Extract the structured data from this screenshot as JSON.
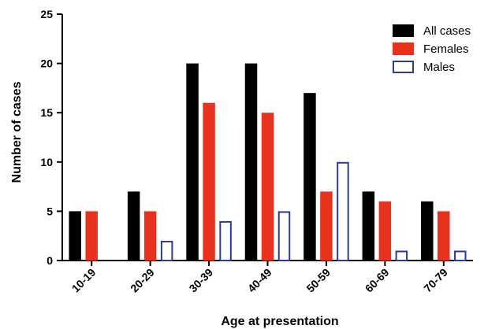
{
  "chart_data": {
    "type": "bar",
    "title": "",
    "xlabel": "Age at presentation",
    "ylabel": "Number of cases",
    "ylim": [
      0,
      25
    ],
    "yticks": [
      0,
      5,
      10,
      15,
      20,
      25
    ],
    "grid": false,
    "legend_position": "top-right",
    "categories": [
      "10-19",
      "20-29",
      "30-39",
      "40-49",
      "50-59",
      "60-69",
      "70-79"
    ],
    "series": [
      {
        "name": "All cases",
        "values": [
          5,
          7,
          20,
          20,
          17,
          7,
          6
        ],
        "fill": "#000000",
        "stroke": "#000000",
        "style": "solid"
      },
      {
        "name": "Females",
        "values": [
          5,
          5,
          16,
          15,
          7,
          6,
          5
        ],
        "fill": "#e8321e",
        "stroke": "#e8321e",
        "style": "solid"
      },
      {
        "name": "Males",
        "values": [
          0,
          2,
          4,
          5,
          10,
          1,
          1
        ],
        "fill": "#ffffff",
        "stroke": "#2b3a9a",
        "style": "outline"
      }
    ]
  }
}
